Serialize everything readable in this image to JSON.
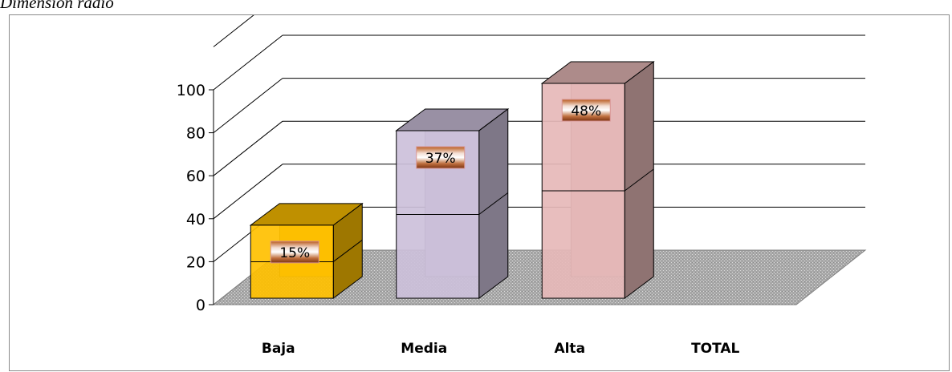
{
  "caption": "Dimensión radio",
  "chart_data": {
    "type": "bar",
    "title": "",
    "xlabel": "",
    "ylabel": "",
    "categories": [
      "Baja",
      "Media",
      "Alta",
      "TOTAL"
    ],
    "values": [
      15,
      37,
      48,
      null
    ],
    "data_labels": [
      "15%",
      "37%",
      "48%",
      ""
    ],
    "yticks": [
      "0",
      "20",
      "40",
      "60",
      "80",
      "100"
    ],
    "ylim": [
      0,
      100
    ],
    "grid": true,
    "legend": "none",
    "colors": {
      "Baja": "#ffc000",
      "Media": "#ccc0da",
      "Alta": "#e6b9b8",
      "floor": "#a6a6a6"
    }
  }
}
